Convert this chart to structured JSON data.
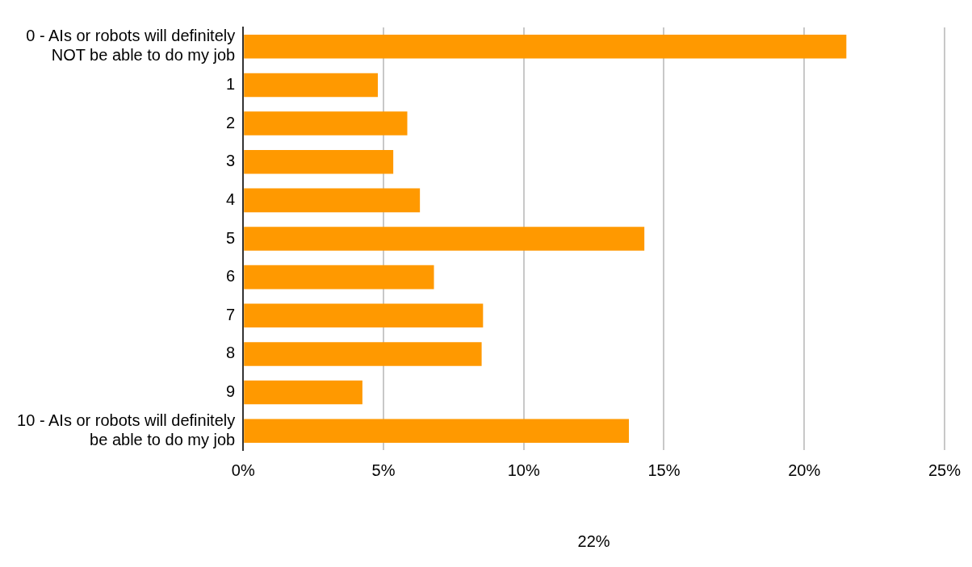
{
  "chart_data": {
    "type": "bar",
    "orientation": "horizontal",
    "xlabel": "22%",
    "categories": [
      "0 - AIs or robots will definitely NOT be able to do my job",
      "1",
      "2",
      "3",
      "4",
      "5",
      "6",
      "7",
      "8",
      "9",
      "10 - AIs or robots will definitely be able to do my job"
    ],
    "values": [
      21.5,
      4.8,
      5.85,
      5.35,
      6.3,
      14.3,
      6.8,
      8.55,
      8.5,
      4.25,
      13.75
    ],
    "color": "#ff9900",
    "xlim": [
      0,
      25
    ],
    "xticks": [
      {
        "value": 0,
        "label": "0%"
      },
      {
        "value": 5,
        "label": "5%"
      },
      {
        "value": 10,
        "label": "10%"
      },
      {
        "value": 15,
        "label": "15%"
      },
      {
        "value": 20,
        "label": "20%"
      },
      {
        "value": 25,
        "label": "25%"
      }
    ],
    "grid": "x",
    "legend": false
  }
}
